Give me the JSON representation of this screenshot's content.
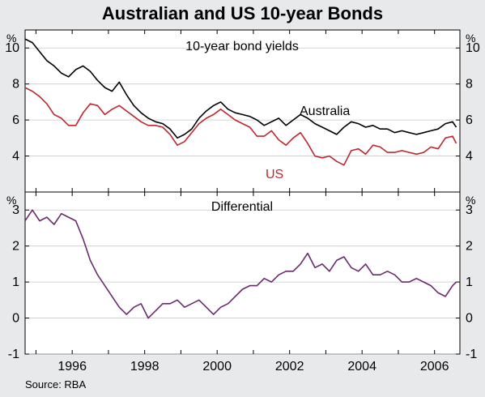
{
  "title": "Australian and US 10-year Bonds",
  "source": "Source: RBA",
  "chart_data": [
    {
      "type": "line",
      "title": "10-year bond yields",
      "unit": "%",
      "ylim": [
        2,
        11
      ],
      "yticks": [
        4,
        6,
        8,
        10
      ],
      "xlim": [
        1994.7,
        2006.7
      ],
      "series": [
        {
          "name": "Australia",
          "color": "#000000",
          "x": [
            1994.7,
            1994.9,
            1995.1,
            1995.3,
            1995.5,
            1995.7,
            1995.9,
            1996.1,
            1996.3,
            1996.5,
            1996.7,
            1996.9,
            1997.1,
            1997.3,
            1997.5,
            1997.7,
            1997.9,
            1998.1,
            1998.3,
            1998.5,
            1998.7,
            1998.9,
            1999.1,
            1999.3,
            1999.5,
            1999.7,
            1999.9,
            2000.1,
            2000.3,
            2000.5,
            2000.7,
            2000.9,
            2001.1,
            2001.3,
            2001.5,
            2001.7,
            2001.9,
            2002.1,
            2002.3,
            2002.5,
            2002.7,
            2002.9,
            2003.1,
            2003.3,
            2003.5,
            2003.7,
            2003.9,
            2004.1,
            2004.3,
            2004.5,
            2004.7,
            2004.9,
            2005.1,
            2005.3,
            2005.5,
            2005.7,
            2005.9,
            2006.1,
            2006.3,
            2006.5,
            2006.6
          ],
          "values": [
            10.5,
            10.3,
            9.8,
            9.3,
            9.0,
            8.6,
            8.4,
            8.8,
            9.0,
            8.7,
            8.2,
            7.8,
            7.6,
            8.1,
            7.4,
            6.8,
            6.4,
            6.1,
            5.9,
            5.8,
            5.5,
            5.0,
            5.2,
            5.5,
            6.1,
            6.5,
            6.8,
            7.0,
            6.6,
            6.4,
            6.3,
            6.2,
            6.0,
            5.7,
            5.9,
            6.1,
            5.7,
            6.0,
            6.3,
            6.1,
            5.8,
            5.6,
            5.4,
            5.2,
            5.6,
            5.9,
            5.8,
            5.6,
            5.7,
            5.5,
            5.5,
            5.3,
            5.4,
            5.3,
            5.2,
            5.3,
            5.4,
            5.5,
            5.8,
            5.9,
            5.6
          ]
        },
        {
          "name": "US",
          "color": "#c0272d",
          "x": [
            1994.7,
            1994.9,
            1995.1,
            1995.3,
            1995.5,
            1995.7,
            1995.9,
            1996.1,
            1996.3,
            1996.5,
            1996.7,
            1996.9,
            1997.1,
            1997.3,
            1997.5,
            1997.7,
            1997.9,
            1998.1,
            1998.3,
            1998.5,
            1998.7,
            1998.9,
            1999.1,
            1999.3,
            1999.5,
            1999.7,
            1999.9,
            2000.1,
            2000.3,
            2000.5,
            2000.7,
            2000.9,
            2001.1,
            2001.3,
            2001.5,
            2001.7,
            2001.9,
            2002.1,
            2002.3,
            2002.5,
            2002.7,
            2002.9,
            2003.1,
            2003.3,
            2003.5,
            2003.7,
            2003.9,
            2004.1,
            2004.3,
            2004.5,
            2004.7,
            2004.9,
            2005.1,
            2005.3,
            2005.5,
            2005.7,
            2005.9,
            2006.1,
            2006.3,
            2006.5,
            2006.6
          ],
          "values": [
            7.8,
            7.6,
            7.3,
            6.9,
            6.3,
            6.1,
            5.7,
            5.7,
            6.4,
            6.9,
            6.8,
            6.3,
            6.6,
            6.8,
            6.5,
            6.2,
            5.9,
            5.7,
            5.7,
            5.6,
            5.2,
            4.6,
            4.8,
            5.3,
            5.8,
            6.1,
            6.3,
            6.6,
            6.3,
            6.0,
            5.8,
            5.6,
            5.1,
            5.1,
            5.4,
            4.9,
            4.6,
            5.0,
            5.3,
            4.7,
            4.0,
            3.9,
            4.0,
            3.7,
            3.5,
            4.3,
            4.4,
            4.1,
            4.6,
            4.5,
            4.2,
            4.2,
            4.3,
            4.2,
            4.1,
            4.2,
            4.5,
            4.4,
            5.0,
            5.1,
            4.7
          ]
        }
      ]
    },
    {
      "type": "line",
      "title": "Differential",
      "unit": "%",
      "ylim": [
        -1,
        3.5
      ],
      "yticks": [
        -1,
        0,
        1,
        2,
        3
      ],
      "xlim": [
        1994.7,
        2006.7
      ],
      "xticks": [
        "1996",
        "1998",
        "2000",
        "2002",
        "2004",
        "2006"
      ],
      "series": [
        {
          "name": "",
          "color": "#6b2a6e",
          "x": [
            1994.7,
            1994.9,
            1995.1,
            1995.3,
            1995.5,
            1995.7,
            1995.9,
            1996.1,
            1996.3,
            1996.5,
            1996.7,
            1996.9,
            1997.1,
            1997.3,
            1997.5,
            1997.7,
            1997.9,
            1998.1,
            1998.3,
            1998.5,
            1998.7,
            1998.9,
            1999.1,
            1999.3,
            1999.5,
            1999.7,
            1999.9,
            2000.1,
            2000.3,
            2000.5,
            2000.7,
            2000.9,
            2001.1,
            2001.3,
            2001.5,
            2001.7,
            2001.9,
            2002.1,
            2002.3,
            2002.5,
            2002.7,
            2002.9,
            2003.1,
            2003.3,
            2003.5,
            2003.7,
            2003.9,
            2004.1,
            2004.3,
            2004.5,
            2004.7,
            2004.9,
            2005.1,
            2005.3,
            2005.5,
            2005.7,
            2005.9,
            2006.1,
            2006.3,
            2006.5,
            2006.6
          ],
          "values": [
            2.7,
            3.0,
            2.7,
            2.8,
            2.6,
            2.9,
            2.8,
            2.7,
            2.2,
            1.6,
            1.2,
            0.9,
            0.6,
            0.3,
            0.1,
            0.3,
            0.4,
            0.0,
            0.2,
            0.4,
            0.4,
            0.5,
            0.3,
            0.4,
            0.5,
            0.3,
            0.1,
            0.3,
            0.4,
            0.6,
            0.8,
            0.9,
            0.9,
            1.1,
            1.0,
            1.2,
            1.3,
            1.3,
            1.5,
            1.8,
            1.4,
            1.5,
            1.3,
            1.6,
            1.7,
            1.4,
            1.3,
            1.5,
            1.2,
            1.2,
            1.3,
            1.2,
            1.0,
            1.0,
            1.1,
            1.0,
            0.9,
            0.7,
            0.6,
            0.9,
            1.0
          ]
        }
      ]
    }
  ]
}
